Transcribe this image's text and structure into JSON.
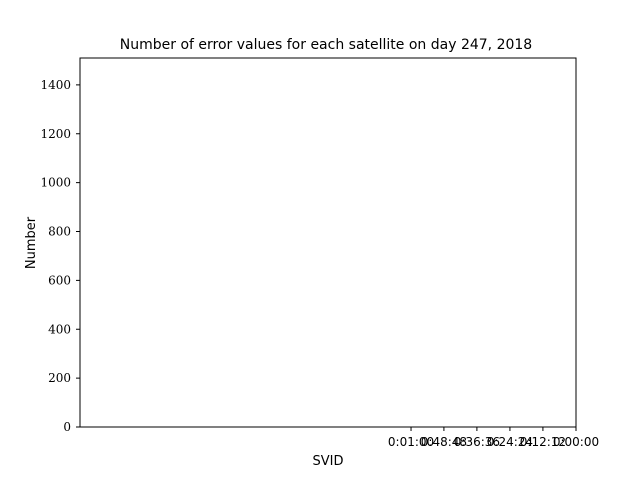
{
  "chart_data": {
    "type": "bar",
    "title": "Number of error values for each satellite on day 247, 2018",
    "xlabel": "SVID",
    "ylabel": "Number",
    "ylim": [
      0,
      1510
    ],
    "yticks": [
      0,
      200,
      400,
      600,
      800,
      1000,
      1200,
      1400
    ],
    "ytick_labels": [
      "0",
      "200",
      "400",
      "600",
      "800",
      "1000",
      "1200",
      "1400"
    ],
    "xlim": [
      0,
      1.0
    ],
    "xticks": [
      0.6674,
      0.7337,
      0.8002,
      0.8668,
      0.9333,
      1.0
    ],
    "xtick_labels": [
      "0:01:00",
      "0:48:48",
      "0:36:36",
      "0:24:24",
      "0:12:12",
      "0:00:00"
    ],
    "categories": [],
    "values": [],
    "grid": false,
    "legend": "none"
  }
}
